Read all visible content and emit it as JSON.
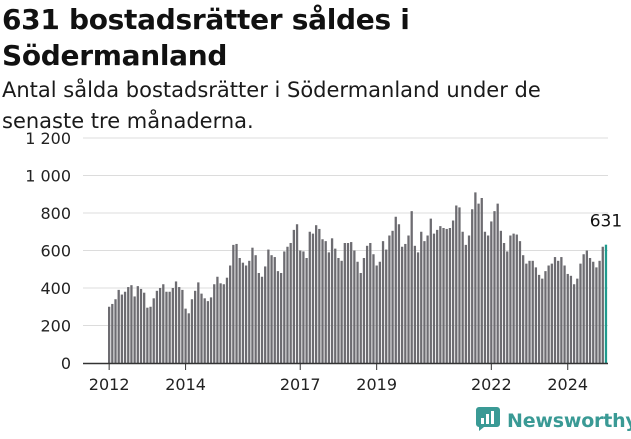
{
  "header": {
    "title": "631 bostadsrätter såldes i Södermanland",
    "subtitle": "Antal sålda bostadsrätter i Södermanland under de senaste tre månaderna."
  },
  "branding": {
    "logo_text": "Newsworthy",
    "logo_icon": "chart-bubble-icon",
    "logo_color": "#3a9a95"
  },
  "colors": {
    "bar": "#6d6c71",
    "highlight": "#1f9b8e",
    "grid": "#dcdcdc",
    "axis": "#333333"
  },
  "chart_data": {
    "type": "bar",
    "title": "631 bostadsrätter såldes i Södermanland",
    "subtitle": "Antal sålda bostadsrätter i Södermanland under de senaste tre månaderna.",
    "xlabel": "",
    "ylabel": "",
    "ylim": [
      0,
      1200
    ],
    "y_ticks": [
      0,
      200,
      400,
      600,
      800,
      1000,
      1200
    ],
    "y_tick_labels": [
      "0",
      "200",
      "400",
      "600",
      "800",
      "1 000",
      "1 200"
    ],
    "x_tick_labels": [
      {
        "label": "2012",
        "index": 0
      },
      {
        "label": "2014",
        "index": 24
      },
      {
        "label": "2017",
        "index": 60
      },
      {
        "label": "2019",
        "index": 84
      },
      {
        "label": "2022",
        "index": 120
      },
      {
        "label": "2024",
        "index": 144
      }
    ],
    "grid": true,
    "last_value_label": "631",
    "values": [
      300,
      315,
      340,
      390,
      365,
      380,
      405,
      415,
      355,
      410,
      395,
      375,
      295,
      300,
      345,
      385,
      400,
      420,
      380,
      380,
      400,
      435,
      405,
      390,
      290,
      265,
      340,
      385,
      430,
      370,
      345,
      330,
      350,
      420,
      460,
      425,
      420,
      455,
      520,
      630,
      635,
      560,
      535,
      520,
      545,
      615,
      575,
      480,
      460,
      515,
      605,
      575,
      565,
      490,
      480,
      595,
      620,
      640,
      710,
      740,
      600,
      595,
      560,
      700,
      690,
      735,
      715,
      660,
      650,
      590,
      665,
      610,
      560,
      545,
      640,
      640,
      645,
      600,
      540,
      480,
      560,
      625,
      640,
      580,
      520,
      540,
      650,
      605,
      680,
      705,
      780,
      740,
      620,
      635,
      680,
      810,
      625,
      590,
      700,
      650,
      680,
      770,
      690,
      710,
      730,
      720,
      715,
      720,
      760,
      840,
      830,
      700,
      630,
      680,
      820,
      910,
      850,
      880,
      700,
      680,
      755,
      810,
      850,
      705,
      640,
      595,
      680,
      690,
      685,
      650,
      575,
      530,
      545,
      545,
      510,
      470,
      450,
      490,
      520,
      530,
      565,
      545,
      565,
      520,
      475,
      465,
      420,
      450,
      530,
      580,
      600,
      560,
      540,
      510,
      545,
      620,
      631
    ]
  }
}
